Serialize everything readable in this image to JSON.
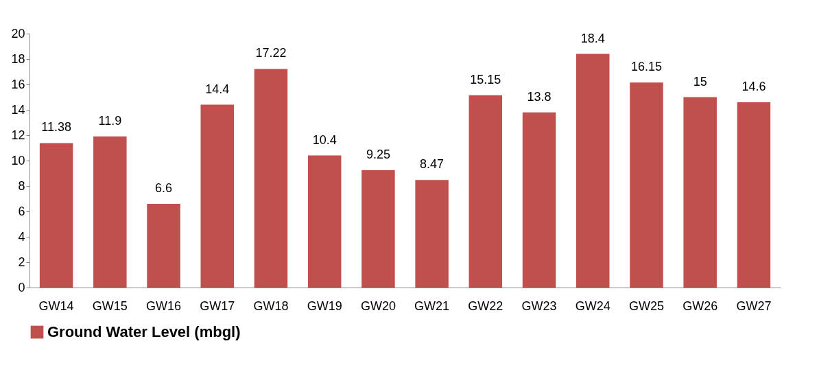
{
  "chart_data": {
    "type": "bar",
    "categories": [
      "GW14",
      "GW15",
      "GW16",
      "GW17",
      "GW18",
      "GW19",
      "GW20",
      "GW21",
      "GW22",
      "GW23",
      "GW24",
      "GW25",
      "GW26",
      "GW27"
    ],
    "series": [
      {
        "name": "Ground Water Level (mbgl)",
        "color": "#c0504d",
        "values": [
          11.38,
          11.9,
          6.6,
          14.4,
          17.22,
          10.4,
          9.25,
          8.47,
          15.15,
          13.8,
          18.4,
          16.15,
          15,
          14.6
        ]
      }
    ],
    "ylim": [
      0,
      20
    ],
    "yticks": [
      0,
      2,
      4,
      6,
      8,
      10,
      12,
      14,
      16,
      18,
      20
    ],
    "grid": false,
    "legend": "bottom",
    "data_labels": true
  }
}
